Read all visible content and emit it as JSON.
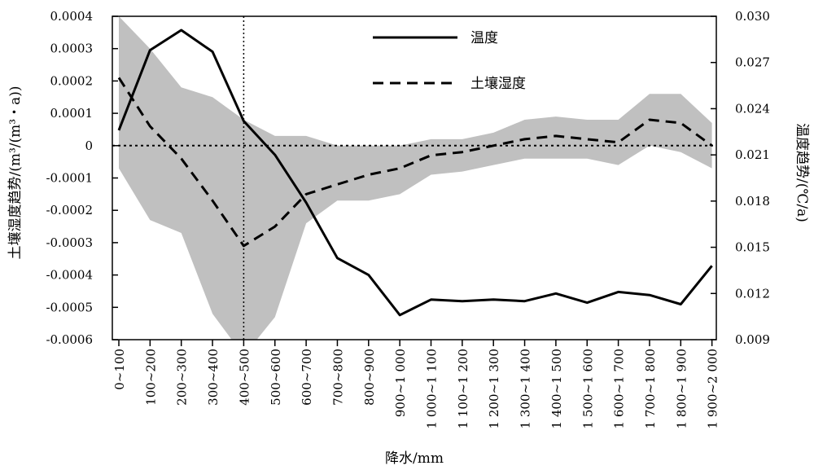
{
  "chart_data": {
    "type": "line",
    "xlabel": "降水/mm",
    "ylabel_left": "土壤湿度趋势/(m³/(m³・a))",
    "ylabel_right": "温度趋势/(℃/a)",
    "categories": [
      "0~100",
      "100~200",
      "200~300",
      "300~400",
      "400~500",
      "500~600",
      "600~700",
      "700~800",
      "800~900",
      "900~1 000",
      "1 000~1 100",
      "1 100~1 200",
      "1 200~1 300",
      "1 300~1 400",
      "1 400~1 500",
      "1 500~1 600",
      "1 600~1 700",
      "1 700~1 800",
      "1 800~1 900",
      "1 900~2 000"
    ],
    "left_axis": {
      "ylim": [
        -0.0006,
        0.0004
      ],
      "ticks": [
        -0.0006,
        -0.0005,
        -0.0004,
        -0.0003,
        -0.0002,
        -0.0001,
        0,
        0.0001,
        0.0002,
        0.0003,
        0.0004
      ],
      "tick_labels": [
        "-0.0006",
        "-0.0005",
        "-0.0004",
        "-0.0003",
        "-0.0002",
        "-0.0001",
        "0",
        "0.0001",
        "0.0002",
        "0.0003",
        "0.0004"
      ]
    },
    "right_axis": {
      "ylim": [
        0.009,
        0.03
      ],
      "ticks": [
        0.009,
        0.012,
        0.015,
        0.018,
        0.021,
        0.024,
        0.027,
        0.03
      ],
      "tick_labels": [
        "0.009",
        "0.012",
        "0.015",
        "0.018",
        "0.021",
        "0.024",
        "0.027",
        "0.030"
      ]
    },
    "series": [
      {
        "name": "温度",
        "axis": "right",
        "style": "solid",
        "values": [
          0.0226,
          0.0278,
          0.0291,
          0.0277,
          0.0232,
          0.021,
          0.0179,
          0.0143,
          0.0132,
          0.0106,
          0.0116,
          0.0115,
          0.0116,
          0.0115,
          0.012,
          0.0114,
          0.0121,
          0.0119,
          0.0113,
          0.0138
        ]
      },
      {
        "name": "土壤湿度",
        "axis": "left",
        "style": "dashed",
        "values": [
          0.00021,
          6e-05,
          -4e-05,
          -0.00017,
          -0.00031,
          -0.00025,
          -0.00015,
          -0.00012,
          -9e-05,
          -7e-05,
          -3e-05,
          -2e-05,
          0.0,
          2e-05,
          3e-05,
          2e-05,
          1e-05,
          8e-05,
          7e-05,
          0.0
        ]
      }
    ],
    "band": {
      "axis": "left",
      "color": "#c0c0c0",
      "upper": [
        0.0004,
        0.0003,
        0.00018,
        0.00015,
        8e-05,
        3e-05,
        3e-05,
        0.0,
        0.0,
        0.0,
        2e-05,
        2e-05,
        4e-05,
        8e-05,
        9e-05,
        8e-05,
        8e-05,
        0.00016,
        0.00016,
        7e-05
      ],
      "lower": [
        -7e-05,
        -0.00023,
        -0.00027,
        -0.00052,
        -0.00065,
        -0.00053,
        -0.00024,
        -0.00017,
        -0.00017,
        -0.00015,
        -9e-05,
        -8e-05,
        -6e-05,
        -4e-05,
        -4e-05,
        -4e-05,
        -6e-05,
        0.0,
        -2e-05,
        -7e-05
      ]
    },
    "reference_lines": {
      "horizontal_left_value": 0,
      "vertical_category": "400~500"
    },
    "legend": {
      "position": "top-center",
      "entries": [
        "温度",
        "土壤湿度"
      ]
    },
    "grid": false
  }
}
